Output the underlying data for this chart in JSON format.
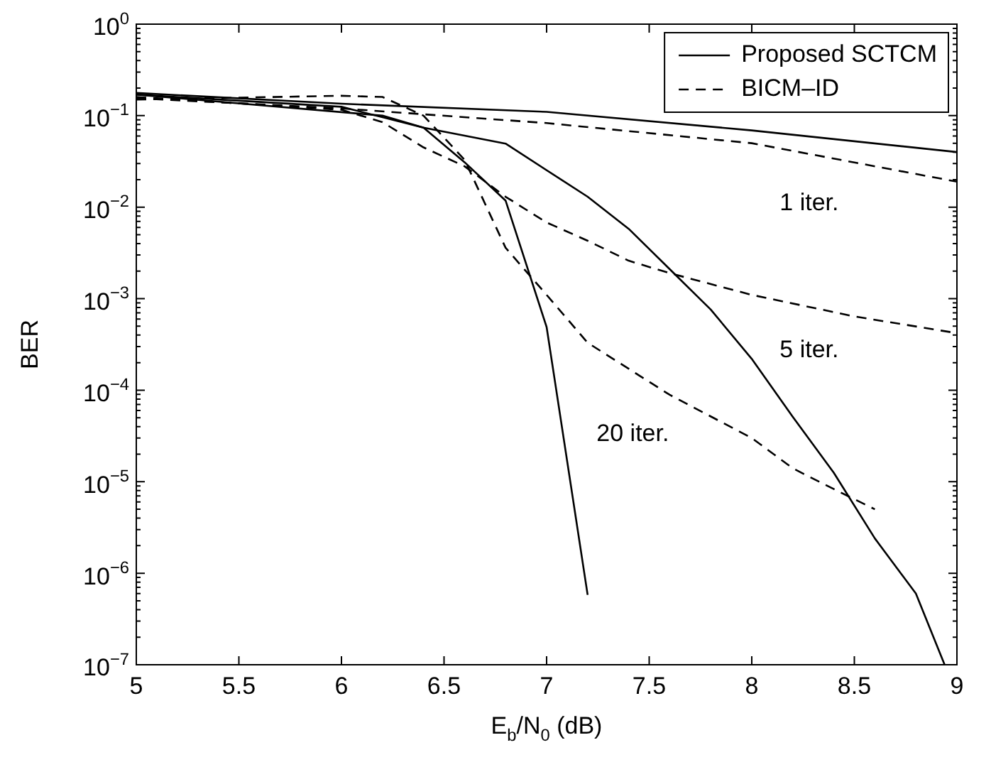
{
  "chart_data": {
    "type": "line",
    "xlabel": "E$_{b}$/N$_{0}$ (dB)",
    "ylabel": "BER",
    "log": "y",
    "grid": false,
    "legend": "top right",
    "marker": "none",
    "xlim": [
      5,
      9
    ],
    "xticks": [
      5,
      5.5,
      6,
      6.5,
      7,
      7.5,
      8,
      8.5,
      9
    ],
    "ylim": [
      1e-07,
      1
    ],
    "yticks": [
      {
        "value": 1e-07,
        "label": "10$^{−7}$"
      },
      {
        "value": 1e-06,
        "label": "10$^{−6}$"
      },
      {
        "value": 1e-05,
        "label": "10$^{−5}$"
      },
      {
        "value": 0.0001,
        "label": "10$^{−4}$"
      },
      {
        "value": 0.001,
        "label": "10$^{−3}$"
      },
      {
        "value": 0.01,
        "label": "10$^{−2}$"
      },
      {
        "value": 0.1,
        "label": "10$^{−1}$"
      },
      {
        "value": 1,
        "label": "10$^{0}$"
      }
    ],
    "series": [
      {
        "name": "Proposed SCTCM",
        "color": "#000000",
        "line_style": "solid",
        "x": [
          5,
          6,
          7,
          8,
          9
        ],
        "values": [
          0.177,
          0.135,
          0.11,
          0.069,
          0.04
        ]
      },
      {
        "color": "#000000",
        "line_style": "solid",
        "x": [
          5,
          6.2,
          6.4,
          6.8,
          7.2,
          7.4,
          7.6,
          7.8,
          8,
          8.2,
          8.4,
          8.6,
          8.8,
          8.94
        ],
        "values": [
          0.17,
          0.1,
          0.074,
          0.0495,
          0.013,
          0.0058,
          0.0021,
          0.00076,
          0.00022,
          5.1e-05,
          1.25e-05,
          2.4e-06,
          6e-07,
          1e-07
        ]
      },
      {
        "color": "#000000",
        "line_style": "solid",
        "x": [
          5,
          6,
          6.4,
          6.6,
          6.8,
          7,
          7.2
        ],
        "values": [
          0.17,
          0.125,
          0.074,
          0.031,
          0.0118,
          0.00049,
          5.8e-07
        ]
      },
      {
        "name": "BICM–ID",
        "color": "#000000",
        "line_style": "dashed",
        "x": [
          5,
          6,
          7,
          8,
          9
        ],
        "values": [
          0.155,
          0.12,
          0.083,
          0.05,
          0.019
        ]
      },
      {
        "color": "#000000",
        "line_style": "dashed",
        "x": [
          5,
          6,
          6.2,
          6.4,
          6.6,
          6.8,
          7,
          7.2,
          7.4,
          7.6,
          8,
          8.5,
          9
        ],
        "values": [
          0.16,
          0.116,
          0.085,
          0.045,
          0.028,
          0.013,
          0.0068,
          0.0043,
          0.0026,
          0.0019,
          0.0011,
          0.00064,
          0.00042
        ]
      },
      {
        "color": "#000000",
        "line_style": "dashed",
        "x": [
          5,
          6,
          6.2,
          6.4,
          6.6,
          6.8,
          7,
          7.2,
          7.6,
          8,
          8.2,
          8.4,
          8.6
        ],
        "values": [
          0.15,
          0.165,
          0.16,
          0.1,
          0.033,
          0.0036,
          0.0011,
          0.00033,
          8.9e-05,
          3e-05,
          1.4e-05,
          8.3e-06,
          5e-06
        ]
      }
    ],
    "annotations": [
      "1 iter.",
      "5 iter.",
      "20 iter."
    ]
  }
}
